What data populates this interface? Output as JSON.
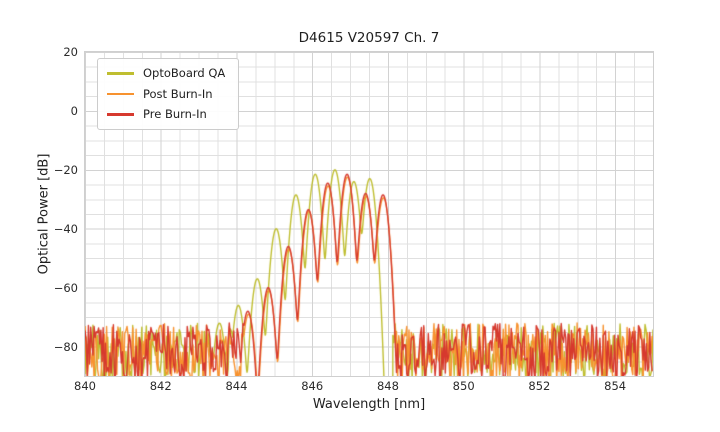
{
  "chart_data": {
    "type": "line",
    "title": "D4615 V20597 Ch. 7",
    "xlabel": "Wavelength [nm]",
    "ylabel": "Optical Power [dB]",
    "xlim": [
      840,
      855
    ],
    "ylim": [
      -90,
      20
    ],
    "grid": {
      "on": true,
      "minor_x_nm": 0.5,
      "minor_y_db": 5,
      "major_color": "#d2d2d2",
      "minor_color": "#e0e0e0"
    },
    "legend_position": "upper left",
    "x_ticks": [
      {
        "v": 840,
        "label": "840"
      },
      {
        "v": 842,
        "label": "842"
      },
      {
        "v": 844,
        "label": "844"
      },
      {
        "v": 846,
        "label": "846"
      },
      {
        "v": 848,
        "label": "848"
      },
      {
        "v": 850,
        "label": "850"
      },
      {
        "v": 852,
        "label": "852"
      },
      {
        "v": 854,
        "label": "854"
      }
    ],
    "y_ticks": [
      {
        "v": 20,
        "label": "20"
      },
      {
        "v": 0,
        "label": "0"
      },
      {
        "v": -20,
        "label": "−20"
      },
      {
        "v": -40,
        "label": "−40"
      },
      {
        "v": -60,
        "label": "−60"
      },
      {
        "v": -80,
        "label": "−80"
      }
    ],
    "mode_sigma_nm": 0.095,
    "noise_floor_db": {
      "min": -92,
      "max": -72
    },
    "series": [
      {
        "name": "OptoBoard QA",
        "color": "#bfbe30",
        "signal_band_nm": [
          844.2,
          848.12
        ],
        "modes": [
          [
            843.55,
            -72
          ],
          [
            844.05,
            -66
          ],
          [
            844.55,
            -57
          ],
          [
            845.05,
            -40
          ],
          [
            845.57,
            -28.5
          ],
          [
            846.08,
            -21.5
          ],
          [
            846.6,
            -20
          ],
          [
            847.1,
            -24
          ],
          [
            847.52,
            -23
          ]
        ]
      },
      {
        "name": "Post Burn-In",
        "color": "#f7922f",
        "signal_band_nm": [
          844.2,
          848.22
        ],
        "modes": [
          [
            844.32,
            -69
          ],
          [
            844.85,
            -61
          ],
          [
            845.38,
            -47
          ],
          [
            845.91,
            -34
          ],
          [
            846.42,
            -25.5
          ],
          [
            846.93,
            -22.5
          ],
          [
            847.42,
            -29
          ],
          [
            847.88,
            -29.5
          ]
        ]
      },
      {
        "name": "Pre Burn-In",
        "color": "#d6392e",
        "signal_band_nm": [
          844.2,
          848.1
        ],
        "modes": [
          [
            844.3,
            -68
          ],
          [
            844.84,
            -60
          ],
          [
            845.37,
            -46
          ],
          [
            845.9,
            -33.5
          ],
          [
            846.41,
            -24.5
          ],
          [
            846.92,
            -21.5
          ],
          [
            847.41,
            -28
          ],
          [
            847.87,
            -28.5
          ]
        ]
      }
    ]
  }
}
